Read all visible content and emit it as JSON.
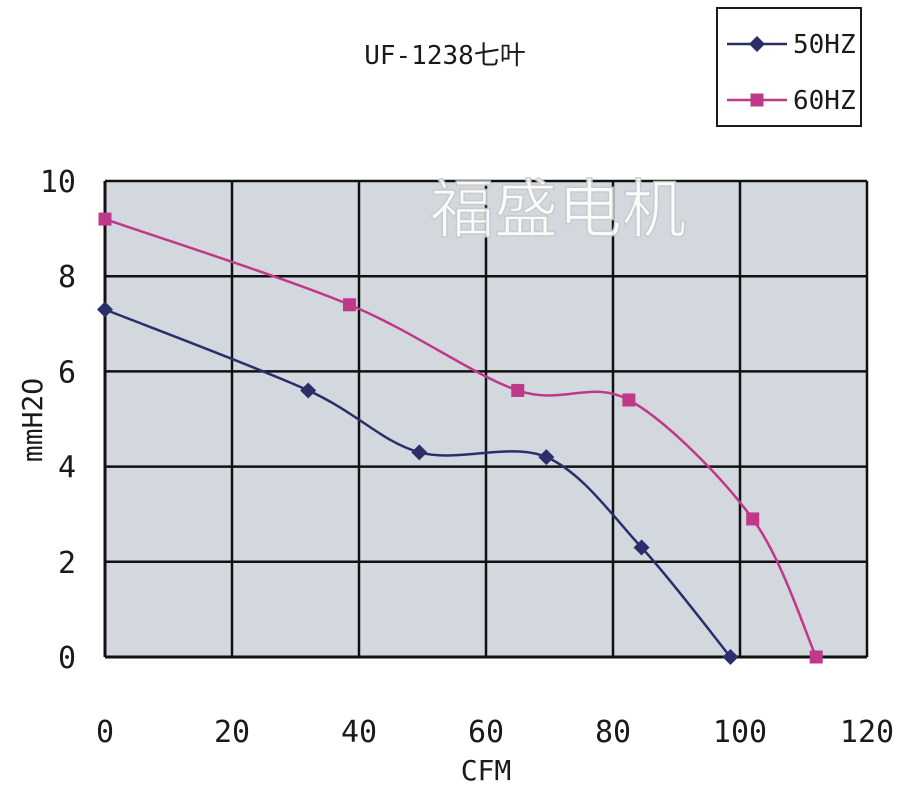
{
  "chart_data": {
    "type": "line",
    "title": "UF-1238七叶",
    "xlabel": "CFM",
    "ylabel": "mmH2O",
    "xlim": [
      0,
      120
    ],
    "ylim": [
      0,
      10
    ],
    "xticks": [
      "0",
      "20",
      "40",
      "60",
      "80",
      "100",
      "120"
    ],
    "yticks": [
      "0",
      "2",
      "4",
      "6",
      "8",
      "10"
    ],
    "grid": true,
    "legend_position": "top-right",
    "watermark": "福盛电机",
    "series": [
      {
        "name": "50HZ",
        "color": "#2a2f6b",
        "marker": "diamond",
        "x": [
          0,
          32,
          49.5,
          69.5,
          84.5,
          98.5
        ],
        "y": [
          7.3,
          5.6,
          4.3,
          4.2,
          2.3,
          0
        ]
      },
      {
        "name": "60HZ",
        "color": "#c0388a",
        "marker": "square",
        "x": [
          0,
          38.5,
          65,
          82.5,
          102,
          112
        ],
        "y": [
          9.2,
          7.4,
          5.6,
          5.4,
          2.9,
          0
        ]
      }
    ]
  }
}
